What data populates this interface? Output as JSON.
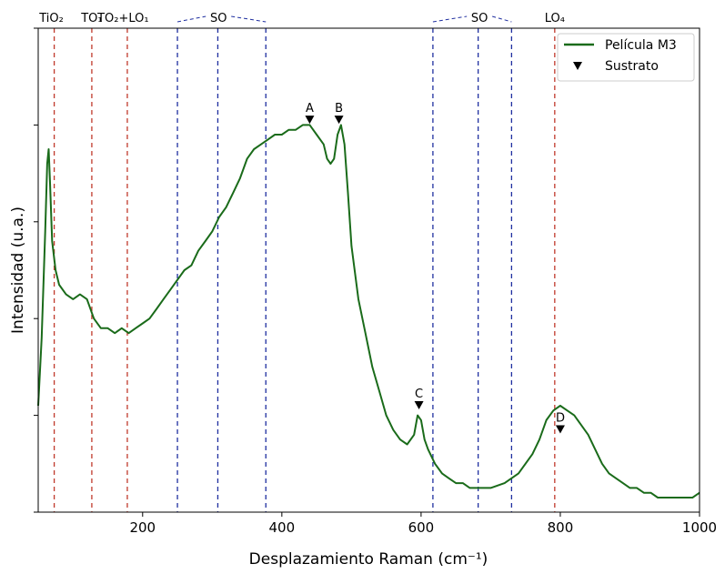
{
  "chart_data": {
    "type": "line",
    "xlabel": "Desplazamiento Raman (cm⁻¹)",
    "ylabel": "Intensidad (u.a.)",
    "xlim": [
      50,
      1000
    ],
    "ylim": [
      0,
      1
    ],
    "x_ticks": [
      200,
      400,
      600,
      800,
      1000
    ],
    "y_tick_labels_shown": false,
    "grid": false,
    "legend_position": "top-right",
    "series": [
      {
        "name": "Película M3",
        "color": "#1a6b1a",
        "x": [
          50,
          55,
          60,
          63,
          65,
          67,
          70,
          75,
          80,
          90,
          100,
          110,
          120,
          130,
          140,
          150,
          160,
          170,
          180,
          190,
          200,
          210,
          220,
          230,
          240,
          250,
          260,
          270,
          280,
          290,
          300,
          310,
          320,
          330,
          340,
          350,
          360,
          370,
          380,
          390,
          400,
          410,
          420,
          430,
          440,
          450,
          460,
          465,
          470,
          475,
          480,
          485,
          490,
          495,
          500,
          510,
          520,
          530,
          540,
          550,
          560,
          570,
          580,
          590,
          595,
          600,
          605,
          610,
          620,
          630,
          640,
          650,
          660,
          670,
          680,
          690,
          700,
          720,
          740,
          760,
          770,
          780,
          790,
          800,
          810,
          820,
          830,
          840,
          850,
          860,
          870,
          880,
          890,
          900,
          910,
          920,
          930,
          940,
          950,
          960,
          970,
          980,
          990,
          1000
        ],
        "y": [
          0.22,
          0.36,
          0.58,
          0.72,
          0.75,
          0.68,
          0.56,
          0.5,
          0.47,
          0.45,
          0.44,
          0.45,
          0.44,
          0.4,
          0.38,
          0.38,
          0.37,
          0.38,
          0.37,
          0.38,
          0.39,
          0.4,
          0.42,
          0.44,
          0.46,
          0.48,
          0.5,
          0.51,
          0.54,
          0.56,
          0.58,
          0.61,
          0.63,
          0.66,
          0.69,
          0.73,
          0.75,
          0.76,
          0.77,
          0.78,
          0.78,
          0.79,
          0.79,
          0.8,
          0.8,
          0.78,
          0.76,
          0.73,
          0.72,
          0.73,
          0.78,
          0.8,
          0.76,
          0.66,
          0.55,
          0.44,
          0.37,
          0.3,
          0.25,
          0.2,
          0.17,
          0.15,
          0.14,
          0.16,
          0.2,
          0.19,
          0.15,
          0.13,
          0.1,
          0.08,
          0.07,
          0.06,
          0.06,
          0.05,
          0.05,
          0.05,
          0.05,
          0.06,
          0.08,
          0.12,
          0.15,
          0.19,
          0.21,
          0.22,
          0.21,
          0.2,
          0.18,
          0.16,
          0.13,
          0.1,
          0.08,
          0.07,
          0.06,
          0.05,
          0.05,
          0.04,
          0.04,
          0.03,
          0.03,
          0.03,
          0.03,
          0.03,
          0.03,
          0.04
        ]
      }
    ],
    "substrate": {
      "name": "Sustrato",
      "marker_color": "#000000",
      "points": [
        {
          "label": "A",
          "x": 440,
          "y": 0.81
        },
        {
          "label": "B",
          "x": 482,
          "y": 0.81
        },
        {
          "label": "C",
          "x": 597,
          "y": 0.22
        },
        {
          "label": "D",
          "x": 800,
          "y": 0.17
        }
      ]
    },
    "vlines": [
      {
        "x": 73,
        "color": "#c0392b"
      },
      {
        "x": 127,
        "color": "#c0392b"
      },
      {
        "x": 178,
        "color": "#c0392b"
      },
      {
        "x": 250,
        "color": "#1f2fa0"
      },
      {
        "x": 308,
        "color": "#1f2fa0"
      },
      {
        "x": 377,
        "color": "#1f2fa0"
      },
      {
        "x": 617,
        "color": "#1f2fa0"
      },
      {
        "x": 682,
        "color": "#1f2fa0"
      },
      {
        "x": 730,
        "color": "#1f2fa0"
      },
      {
        "x": 792,
        "color": "#c0392b"
      }
    ],
    "top_labels": [
      {
        "text": "TiO₂",
        "x": 69
      },
      {
        "text": "TO₁",
        "x": 127
      },
      {
        "text": "TO₂+LO₁",
        "x": 172
      },
      {
        "text": "SO",
        "x": 309,
        "bracket": [
          250,
          377
        ]
      },
      {
        "text": "SO",
        "x": 684,
        "bracket": [
          617,
          730
        ]
      },
      {
        "text": "LO₄",
        "x": 792
      }
    ]
  }
}
